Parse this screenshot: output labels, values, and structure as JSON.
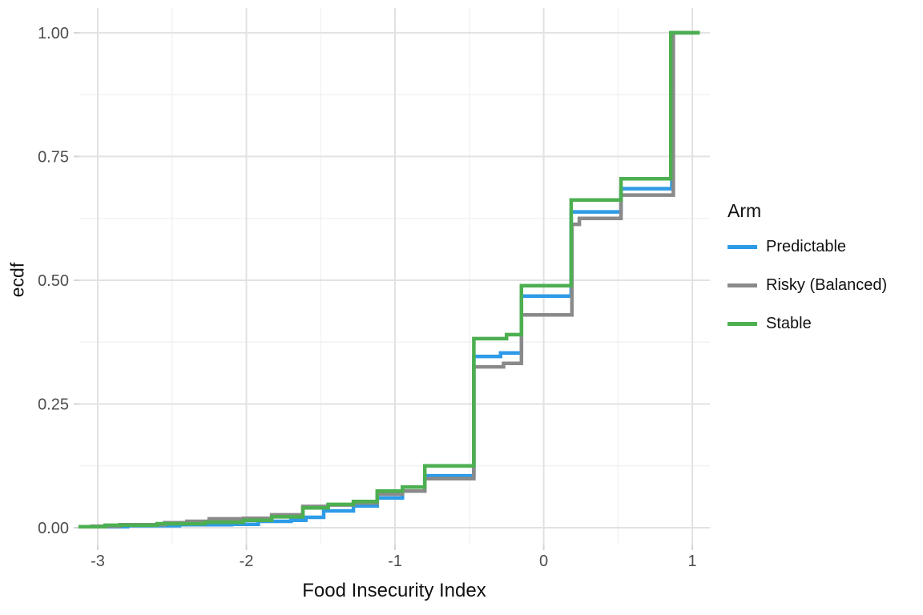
{
  "chart_data": {
    "type": "line",
    "subtype": "step-ecdf",
    "title": "",
    "xlabel": "Food Insecurity Index",
    "ylabel": "ecdf",
    "legend_title": "Arm",
    "legend_position": "right",
    "grid": true,
    "x_domain": [
      -3.124,
      1.118
    ],
    "y_domain": [
      -0.034,
      1.05
    ],
    "x_ticks": [
      -3,
      -2,
      -1,
      0,
      1
    ],
    "x_tick_labels": [
      "-3",
      "-2",
      "-1",
      "0",
      "1"
    ],
    "y_ticks": [
      0,
      0.25,
      0.5,
      0.75,
      1
    ],
    "y_tick_labels": [
      "0.00",
      "0.25",
      "0.50",
      "0.75",
      "1.00"
    ],
    "x_minor_gridlines": [
      -2.5,
      -1.5,
      -0.5,
      0.5
    ],
    "y_minor_gridlines": [
      0.125,
      0.375,
      0.625,
      0.875
    ],
    "colors": {
      "major_grid": "#E2E2E2",
      "minor_grid": "#F1F1F1",
      "tick_mark": "#D5D5D5",
      "tick_label": "#4D4D4D",
      "axis_title": "#111111"
    },
    "series": [
      {
        "name": "Predictable",
        "color": "#2D9BE7",
        "points": [
          [
            -3.1,
            0.002
          ],
          [
            -2.8,
            0.004
          ],
          [
            -2.45,
            0.006
          ],
          [
            -2.1,
            0.007
          ],
          [
            -1.92,
            0.013
          ],
          [
            -1.7,
            0.015
          ],
          [
            -1.6,
            0.021
          ],
          [
            -1.48,
            0.034
          ],
          [
            -1.28,
            0.044
          ],
          [
            -1.12,
            0.06
          ],
          [
            -0.95,
            0.074
          ],
          [
            -0.8,
            0.105
          ],
          [
            -0.47,
            0.346
          ],
          [
            -0.29,
            0.353
          ],
          [
            -0.15,
            0.468
          ],
          [
            0.185,
            0.638
          ],
          [
            0.52,
            0.685
          ],
          [
            0.862,
            1.0
          ],
          [
            1.05,
            1.0
          ]
        ]
      },
      {
        "name": "Risky (Balanced)",
        "color": "#8A8A8A",
        "points": [
          [
            -3.05,
            0.003
          ],
          [
            -2.85,
            0.006
          ],
          [
            -2.55,
            0.01
          ],
          [
            -2.4,
            0.013
          ],
          [
            -2.25,
            0.018
          ],
          [
            -2.02,
            0.019
          ],
          [
            -1.83,
            0.026
          ],
          [
            -1.62,
            0.043
          ],
          [
            -1.45,
            0.046
          ],
          [
            -1.28,
            0.05
          ],
          [
            -1.12,
            0.068
          ],
          [
            -0.95,
            0.074
          ],
          [
            -0.8,
            0.099
          ],
          [
            -0.47,
            0.325
          ],
          [
            -0.27,
            0.332
          ],
          [
            -0.15,
            0.43
          ],
          [
            0.19,
            0.613
          ],
          [
            0.24,
            0.625
          ],
          [
            0.52,
            0.672
          ],
          [
            0.872,
            1.0
          ],
          [
            1.05,
            1.0
          ]
        ]
      },
      {
        "name": "Stable",
        "color": "#4CAF50",
        "points": [
          [
            -3.13,
            0.002
          ],
          [
            -2.95,
            0.005
          ],
          [
            -2.6,
            0.008
          ],
          [
            -2.28,
            0.011
          ],
          [
            -2.02,
            0.015
          ],
          [
            -1.83,
            0.022
          ],
          [
            -1.62,
            0.04
          ],
          [
            -1.45,
            0.047
          ],
          [
            -1.28,
            0.053
          ],
          [
            -1.12,
            0.074
          ],
          [
            -0.95,
            0.082
          ],
          [
            -0.8,
            0.125
          ],
          [
            -0.47,
            0.382
          ],
          [
            -0.25,
            0.39
          ],
          [
            -0.15,
            0.489
          ],
          [
            0.185,
            0.662
          ],
          [
            0.52,
            0.705
          ],
          [
            0.855,
            1.0
          ],
          [
            1.05,
            1.0
          ]
        ]
      }
    ]
  }
}
